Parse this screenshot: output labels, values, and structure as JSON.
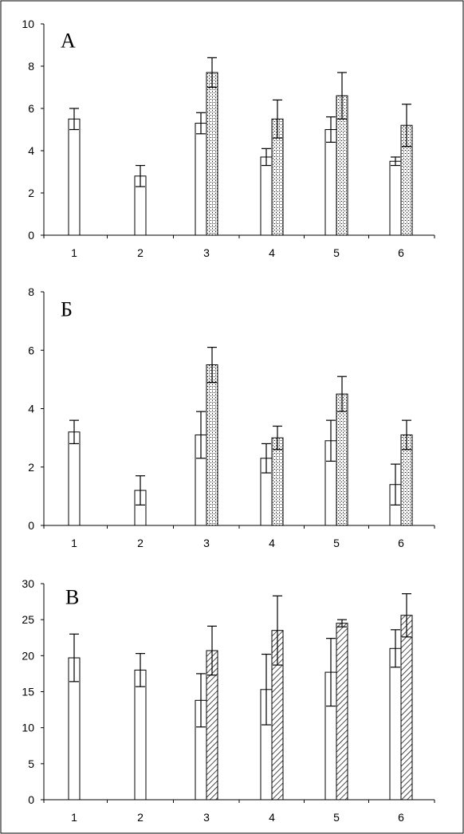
{
  "chart_data": [
    {
      "type": "bar",
      "panel_label": "А",
      "categories": [
        "1",
        "2",
        "3",
        "4",
        "5",
        "6"
      ],
      "ylim": [
        0,
        10
      ],
      "yticks": [
        "0",
        "2",
        "4",
        "6",
        "8",
        "10"
      ],
      "grid": false,
      "legend": "none",
      "series": [
        {
          "fill": "open",
          "values": [
            5.5,
            2.8,
            5.3,
            3.7,
            5.0,
            3.5
          ],
          "errors": [
            0.5,
            0.5,
            0.5,
            0.4,
            0.6,
            0.2
          ]
        },
        {
          "fill": "stipple",
          "values": [
            null,
            null,
            7.7,
            5.5,
            6.6,
            5.2
          ],
          "errors": [
            null,
            null,
            0.7,
            0.9,
            1.1,
            1.0
          ]
        }
      ]
    },
    {
      "type": "bar",
      "panel_label": "Б",
      "categories": [
        "1",
        "2",
        "3",
        "4",
        "5",
        "6"
      ],
      "ylim": [
        0,
        8
      ],
      "yticks": [
        "0",
        "2",
        "4",
        "6",
        "8"
      ],
      "grid": false,
      "legend": "none",
      "series": [
        {
          "fill": "open",
          "values": [
            3.2,
            1.2,
            3.1,
            2.3,
            2.9,
            1.4
          ],
          "errors": [
            0.4,
            0.5,
            0.8,
            0.5,
            0.7,
            0.7
          ]
        },
        {
          "fill": "stipple",
          "values": [
            null,
            null,
            5.5,
            3.0,
            4.5,
            3.1
          ],
          "errors": [
            null,
            null,
            0.6,
            0.4,
            0.6,
            0.5
          ]
        }
      ]
    },
    {
      "type": "bar",
      "panel_label": "В",
      "categories": [
        "1",
        "2",
        "3",
        "4",
        "5",
        "6"
      ],
      "ylim": [
        0,
        30
      ],
      "yticks": [
        "0",
        "5",
        "10",
        "15",
        "20",
        "25",
        "30"
      ],
      "grid": false,
      "legend": "none",
      "series": [
        {
          "fill": "open",
          "values": [
            19.7,
            18.0,
            13.8,
            15.3,
            17.7,
            21.0
          ],
          "errors": [
            3.3,
            2.3,
            3.7,
            4.9,
            4.7,
            2.6
          ]
        },
        {
          "fill": "hatch",
          "values": [
            null,
            null,
            20.7,
            23.5,
            24.5,
            25.6
          ],
          "errors": [
            null,
            null,
            3.4,
            4.8,
            0.5,
            3.0
          ]
        }
      ]
    }
  ]
}
